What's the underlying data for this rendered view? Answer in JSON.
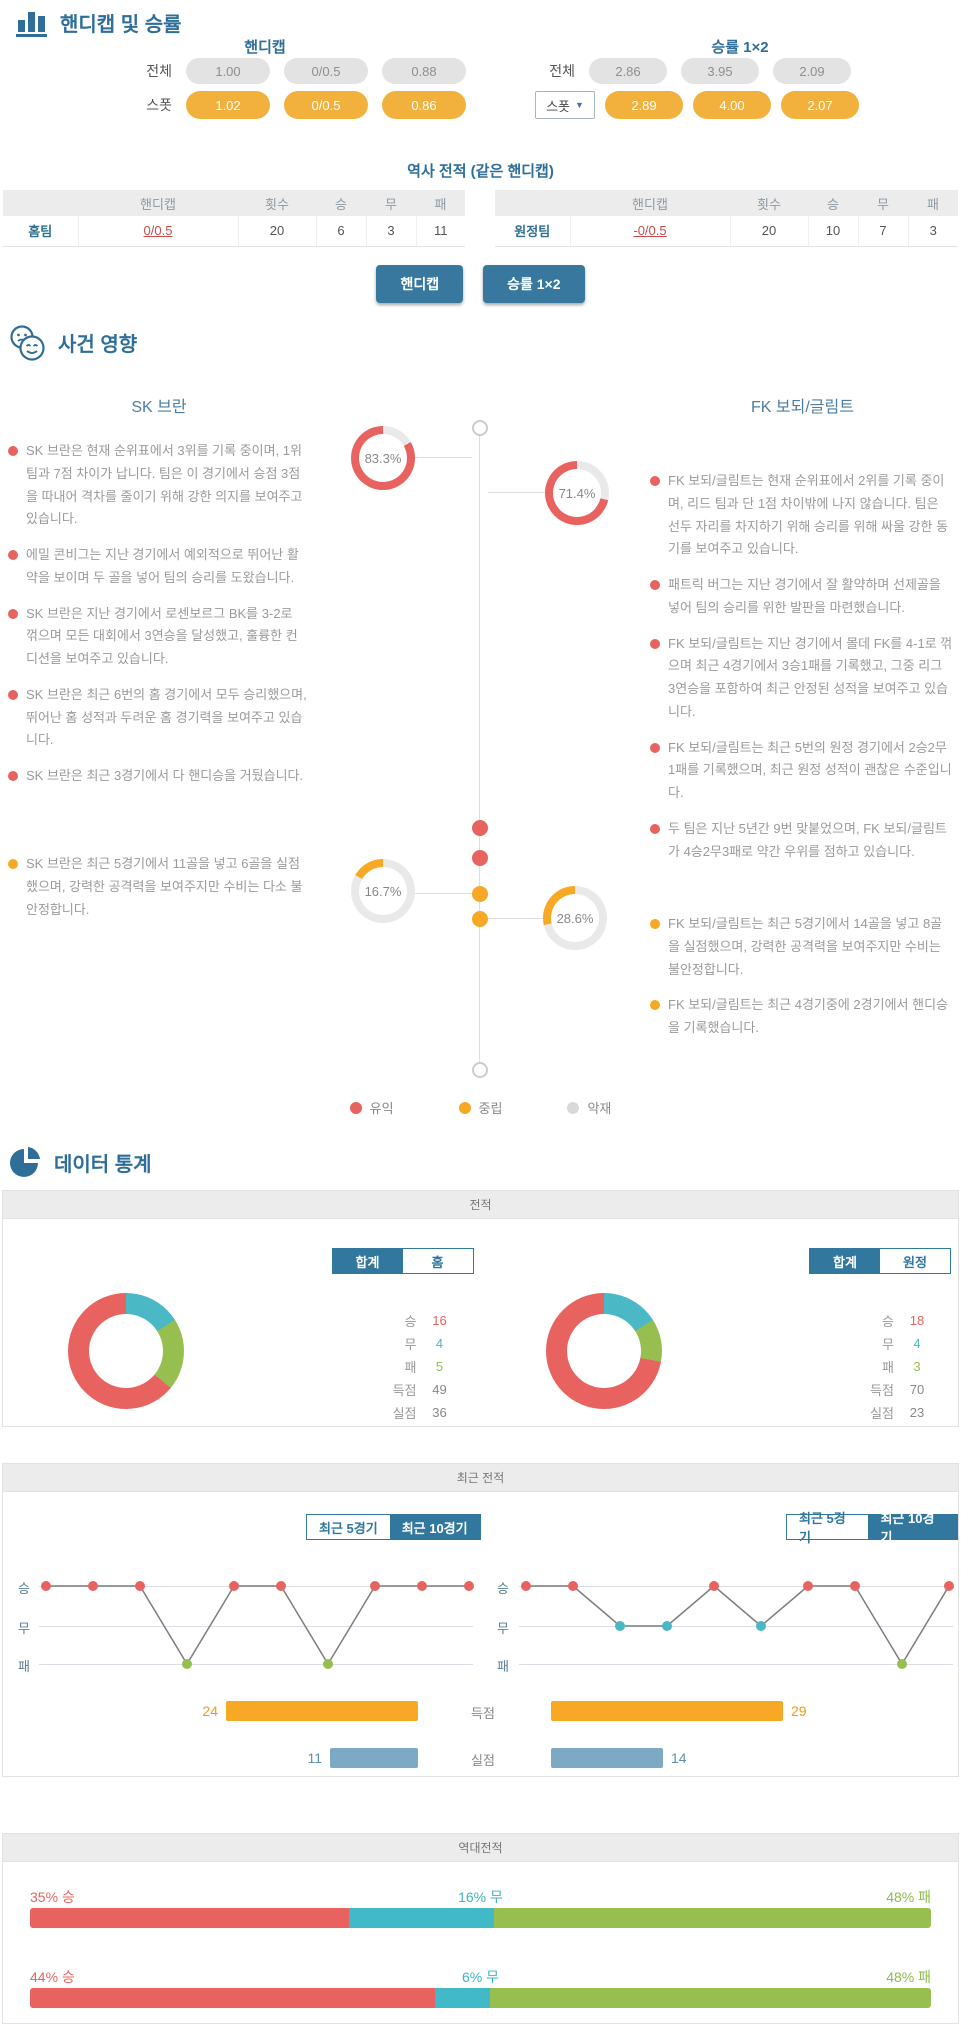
{
  "odds": {
    "section_title": "핸디캡 및 승률",
    "handicap_title": "핸디캡",
    "winrate_title": "승률 1×2",
    "all_label": "전체",
    "spot_label": "스폿",
    "spot_select_label": "스폿",
    "handicap_all": [
      "1.00",
      "0/0.5",
      "0.88"
    ],
    "handicap_spot": [
      "1.02",
      "0/0.5",
      "0.86"
    ],
    "winrate_all": [
      "2.86",
      "3.95",
      "2.09"
    ],
    "winrate_spot": [
      "2.89",
      "4.00",
      "2.07"
    ],
    "history_title": "역사 전적 (같은 핸디캡)",
    "table_headers": {
      "handicap": "핸디캡",
      "count": "횟수",
      "win": "승",
      "draw": "무",
      "lose": "패"
    },
    "home_row": {
      "team": "홈팀",
      "handicap": "0/0.5",
      "count": "20",
      "win": "6",
      "draw": "3",
      "lose": "11"
    },
    "away_row": {
      "team": "원정팀",
      "handicap": "-0/0.5",
      "count": "20",
      "win": "10",
      "draw": "7",
      "lose": "3"
    },
    "button_handicap": "핸디캡",
    "button_winrate": "승률 1×2"
  },
  "events": {
    "section_title": "사건 영향",
    "home_team": "SK 브란",
    "away_team": "FK 보되/글림트",
    "donut_home_good": "83.3%",
    "donut_away_good": "71.4%",
    "donut_home_neutral": "16.7%",
    "donut_away_neutral": "28.6%",
    "home_good": [
      "SK 브란은 현재 순위표에서 3위를 기록 중이며, 1위 팀과 7점 차이가 납니다. 팀은 이 경기에서 승점 3점을 따내어 격차를 줄이기 위해 강한 의지를 보여주고 있습니다.",
      "에밀 콘비그는 지난 경기에서 예외적으로 뛰어난 활약을 보이며 두 골을 넣어 팀의 승리를 도왔습니다.",
      "SK 브란은 지난 경기에서 로센보르그 BK를 3-2로 꺾으며 모든 대회에서 3연승을 달성했고, 훌륭한 컨디션을 보여주고 있습니다.",
      "SK 브란은 최근 6번의 홈 경기에서 모두 승리했으며, 뛰어난 홈 성적과 두려운 홈 경기력을 보여주고 있습니다.",
      "SK 브란은 최근 3경기에서 다 핸디승을 거뒀습니다."
    ],
    "home_neutral": [
      "SK 브란은 최근 5경기에서 11골을 넣고 6골을 실점했으며, 강력한 공격력을 보여주지만 수비는 다소 불안정합니다."
    ],
    "away_good": [
      "FK 보되/글림트는 현재 순위표에서 2위를 기록 중이며, 리드 팀과 단 1점 차이밖에 나지 않습니다. 팀은 선두 자리를 차지하기 위해 승리를 위해 싸울 강한 동기를 보여주고 있습니다.",
      "패트릭 버그는 지난 경기에서 잘 활약하며 선제골을 넣어 팀의 승리를 위한 발판을 마련했습니다.",
      "FK 보되/글림트는 지난 경기에서 몰데 FK를 4-1로 꺾으며 최근 4경기에서 3승1패를 기록했고, 그중 리그 3연승을 포함하여 최근 안정된 성적을 보여주고 있습니다.",
      "FK 보되/글림트는 최근 5번의 원정 경기에서 2승2무1패를 기록했으며, 최근 원정 성적이 괜찮은 수준입니다.",
      "두 팀은 지난 5년간 9번 맞붙었으며, FK 보되/글림트가 4승2무3패로 약간 우위를 점하고 있습니다."
    ],
    "away_neutral": [
      "FK 보되/글림트는 최근 5경기에서 14골을 넣고 8골을 실점했으며, 강력한 공격력을 보여주지만 수비는 불안정합니다.",
      "FK 보되/글림트는 최근 4경기중에 2경기에서 핸디승을 기록했습니다."
    ],
    "legend": [
      {
        "label": "유익",
        "color": "#e8635f"
      },
      {
        "label": "중립",
        "color": "#f7a825"
      },
      {
        "label": "악재",
        "color": "#d9d9d9"
      }
    ]
  },
  "stats": {
    "section_title": "데이터 통계",
    "record_panel": {
      "header": "전적",
      "home": {
        "tabs": [
          "합계",
          "홈"
        ],
        "active_tab": 0,
        "rows": [
          {
            "label": "승",
            "value": 16,
            "color": "#e8635f"
          },
          {
            "label": "무",
            "value": 4,
            "color": "#4ab9c5"
          },
          {
            "label": "패",
            "value": 5,
            "color": "#99bf50"
          },
          {
            "label": "득점",
            "value": 49,
            "color": "#888888"
          },
          {
            "label": "실점",
            "value": 36,
            "color": "#888888"
          }
        ]
      },
      "away": {
        "tabs": [
          "합계",
          "원정"
        ],
        "active_tab": 0,
        "rows": [
          {
            "label": "승",
            "value": 18,
            "color": "#e8635f"
          },
          {
            "label": "무",
            "value": 4,
            "color": "#4ab9c5"
          },
          {
            "label": "패",
            "value": 3,
            "color": "#99bf50"
          },
          {
            "label": "득점",
            "value": 70,
            "color": "#888888"
          },
          {
            "label": "실점",
            "value": 23,
            "color": "#888888"
          }
        ]
      }
    },
    "recent_panel": {
      "header": "최근 전적",
      "tabs": [
        "최근 5경기",
        "최근 10경기"
      ],
      "active_tab": 1,
      "y_labels": [
        "승",
        "무",
        "패"
      ],
      "home_results": [
        "W",
        "W",
        "W",
        "L",
        "W",
        "W",
        "L",
        "W",
        "W",
        "W"
      ],
      "away_results": [
        "W",
        "W",
        "D",
        "D",
        "W",
        "D",
        "W",
        "W",
        "L",
        "W"
      ],
      "goals_label": "득점",
      "conceded_label": "실점",
      "home_goals": 24,
      "home_conceded": 11,
      "away_goals": 29,
      "away_conceded": 14
    },
    "h2h_panel": {
      "header": "역대전적",
      "bars": [
        {
          "win": 35,
          "draw": 16,
          "lose": 48,
          "win_label": "35% 승",
          "draw_label": "16% 무",
          "lose_label": "48% 패"
        },
        {
          "win": 44,
          "draw": 6,
          "lose": 48,
          "win_label": "44% 승",
          "draw_label": "6% 무",
          "lose_label": "48% 패"
        }
      ]
    }
  }
}
